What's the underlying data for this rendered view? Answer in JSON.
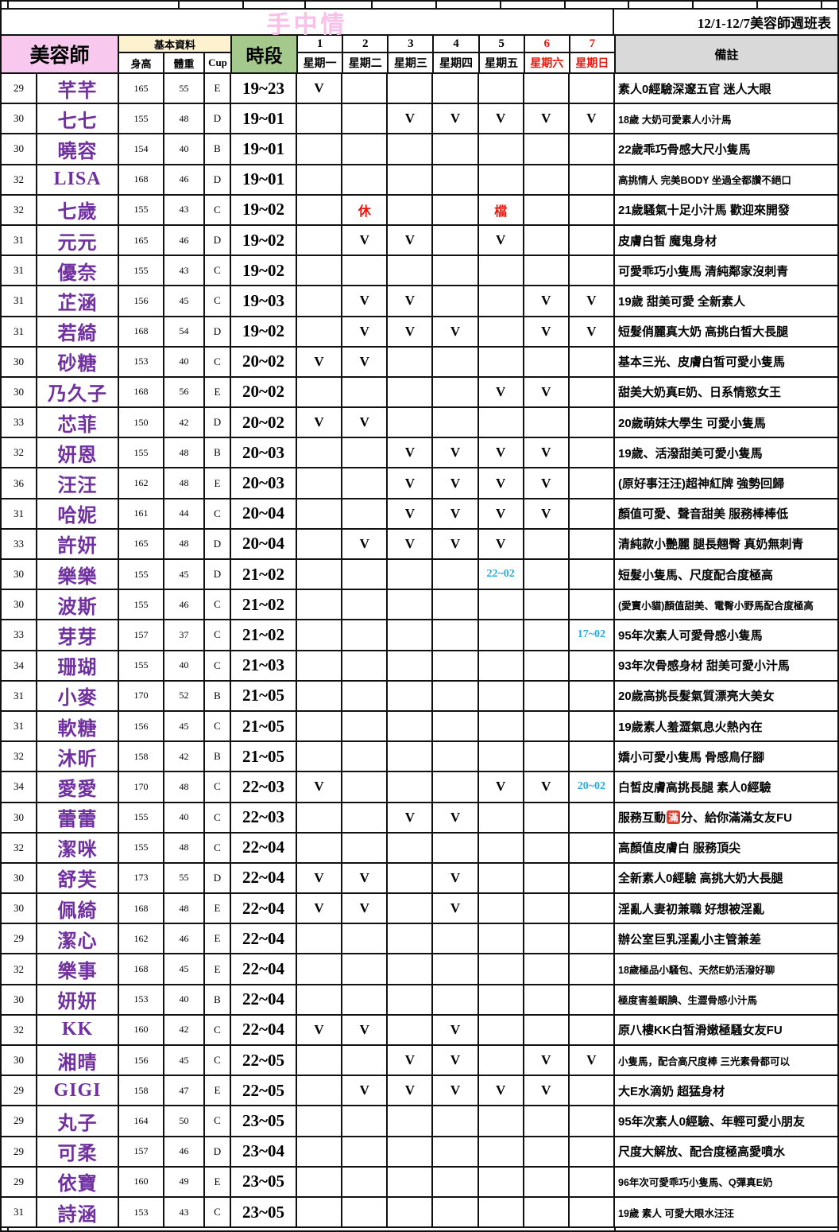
{
  "title": "手中情",
  "subtitle": "12/1-12/7美容師週班表",
  "header": {
    "beautician": "美容師",
    "basic_info": "基本資料",
    "height": "身高",
    "weight": "體重",
    "cup": "Cup",
    "time_slot": "時段",
    "remark": "備註",
    "days": [
      {
        "num": "1",
        "label": "星期一",
        "red": false
      },
      {
        "num": "2",
        "label": "星期二",
        "red": false
      },
      {
        "num": "3",
        "label": "星期三",
        "red": false
      },
      {
        "num": "4",
        "label": "星期四",
        "red": false
      },
      {
        "num": "5",
        "label": "星期五",
        "red": false
      },
      {
        "num": "6",
        "label": "星期六",
        "red": true
      },
      {
        "num": "7",
        "label": "星期日",
        "red": true
      }
    ]
  },
  "colors": {
    "name_purple": "#7030a0",
    "header_pink": "#f8c8ef",
    "header_cream": "#fcf2cf",
    "header_green": "#a5c98c",
    "header_gray": "#d9d9d9",
    "weekend_red": "#ee1509",
    "special_blue": "#29a9e1",
    "title_pink": "#f9c0ea"
  },
  "special": {
    "man_badge": "滿"
  },
  "rows": [
    {
      "age": "29",
      "name": "芊芊",
      "h": "165",
      "w": "55",
      "cup": "E",
      "time": "19~23",
      "days": [
        "V",
        "",
        "",
        "",
        "",
        "",
        ""
      ],
      "remark": "素人0經驗深邃五官 迷人大眼"
    },
    {
      "age": "30",
      "name": "七七",
      "h": "155",
      "w": "48",
      "cup": "D",
      "time": "19~01",
      "days": [
        "",
        "",
        "V",
        "V",
        "V",
        "V",
        "V"
      ],
      "remark": "18歲 大奶可愛素人小汁馬",
      "sm": 1
    },
    {
      "age": "30",
      "name": "曉容",
      "h": "154",
      "w": "40",
      "cup": "B",
      "time": "19~01",
      "days": [
        "",
        "",
        "",
        "",
        "",
        "",
        ""
      ],
      "remark": "22歲乖巧骨感大尺小隻馬"
    },
    {
      "age": "32",
      "name": "LISA",
      "h": "168",
      "w": "46",
      "cup": "D",
      "time": "19~01",
      "days": [
        "",
        "",
        "",
        "",
        "",
        "",
        ""
      ],
      "remark": "高挑情人 完美BODY 坐過全都讚不絕口",
      "sm": 1
    },
    {
      "age": "32",
      "name": "七歲",
      "h": "155",
      "w": "43",
      "cup": "C",
      "time": "19~02",
      "days": [
        "",
        "休",
        "",
        "",
        "檔",
        "",
        ""
      ],
      "remark": "21歲騷氣十足小汁馬 歡迎來開發"
    },
    {
      "age": "31",
      "name": "元元",
      "h": "165",
      "w": "46",
      "cup": "D",
      "time": "19~02",
      "days": [
        "",
        "V",
        "V",
        "",
        "V",
        "",
        ""
      ],
      "remark": "皮膚白皙 魔鬼身材"
    },
    {
      "age": "31",
      "name": "優奈",
      "h": "155",
      "w": "43",
      "cup": "C",
      "time": "19~02",
      "days": [
        "",
        "",
        "",
        "",
        "",
        "",
        ""
      ],
      "remark": "可愛乖巧小隻馬 清純鄰家沒刺青"
    },
    {
      "age": "31",
      "name": "芷涵",
      "h": "156",
      "w": "45",
      "cup": "C",
      "time": "19~03",
      "days": [
        "",
        "V",
        "V",
        "",
        "",
        "V",
        "V"
      ],
      "remark": "19歲 甜美可愛 全新素人"
    },
    {
      "age": "31",
      "name": "若綺",
      "h": "168",
      "w": "54",
      "cup": "D",
      "time": "19~02",
      "days": [
        "",
        "V",
        "V",
        "V",
        "",
        "V",
        "V"
      ],
      "remark": "短髮俏麗真大奶 高挑白皙大長腿"
    },
    {
      "age": "30",
      "name": "砂糖",
      "h": "153",
      "w": "40",
      "cup": "C",
      "time": "20~02",
      "days": [
        "V",
        "V",
        "",
        "",
        "",
        "",
        ""
      ],
      "remark": "基本三光、皮膚白皙可愛小隻馬"
    },
    {
      "age": "30",
      "name": "乃久子",
      "h": "168",
      "w": "56",
      "cup": "E",
      "time": "20~02",
      "days": [
        "",
        "",
        "",
        "",
        "V",
        "V",
        ""
      ],
      "remark": "甜美大奶真E奶、日系情慾女王"
    },
    {
      "age": "33",
      "name": "芯菲",
      "h": "150",
      "w": "42",
      "cup": "D",
      "time": "20~02",
      "days": [
        "V",
        "V",
        "",
        "",
        "",
        "",
        ""
      ],
      "remark": "20歲萌妹大學生 可愛小隻馬"
    },
    {
      "age": "32",
      "name": "妍恩",
      "h": "155",
      "w": "48",
      "cup": "B",
      "time": "20~03",
      "days": [
        "",
        "",
        "V",
        "V",
        "V",
        "V",
        ""
      ],
      "remark": "19歲、活潑甜美可愛小隻馬"
    },
    {
      "age": "36",
      "name": "汪汪",
      "h": "162",
      "w": "48",
      "cup": "E",
      "time": "20~03",
      "days": [
        "",
        "",
        "V",
        "V",
        "V",
        "V",
        ""
      ],
      "remark": "(原好事汪汪)超神紅牌 強勢回歸"
    },
    {
      "age": "31",
      "name": "哈妮",
      "h": "161",
      "w": "44",
      "cup": "C",
      "time": "20~04",
      "days": [
        "",
        "",
        "V",
        "V",
        "V",
        "V",
        ""
      ],
      "remark": "顏值可愛、聲音甜美 服務棒棒低"
    },
    {
      "age": "33",
      "name": "許妍",
      "h": "165",
      "w": "48",
      "cup": "D",
      "time": "20~04",
      "days": [
        "",
        "V",
        "V",
        "V",
        "V",
        "",
        ""
      ],
      "remark": "清純款小艷麗 腿長翹臀 真奶無刺青"
    },
    {
      "age": "30",
      "name": "樂樂",
      "h": "155",
      "w": "45",
      "cup": "D",
      "time": "21~02",
      "days": [
        "",
        "",
        "",
        "",
        "22~02",
        "",
        ""
      ],
      "remark": "短髮小隻馬、尺度配合度極高"
    },
    {
      "age": "30",
      "name": "波斯",
      "h": "155",
      "w": "46",
      "cup": "C",
      "time": "21~02",
      "days": [
        "",
        "",
        "",
        "",
        "",
        "",
        ""
      ],
      "remark": "(愛寶小貓)顏值甜美、電臀小野馬配合度極高",
      "sm": 1
    },
    {
      "age": "33",
      "name": "芽芽",
      "h": "157",
      "w": "37",
      "cup": "C",
      "time": "21~02",
      "days": [
        "",
        "",
        "",
        "",
        "",
        "",
        "17~02"
      ],
      "remark": "95年次素人可愛骨感小隻馬"
    },
    {
      "age": "34",
      "name": "珊瑚",
      "h": "155",
      "w": "40",
      "cup": "C",
      "time": "21~03",
      "days": [
        "",
        "",
        "",
        "",
        "",
        "",
        ""
      ],
      "remark": "93年次骨感身材 甜美可愛小汁馬"
    },
    {
      "age": "31",
      "name": "小麥",
      "h": "170",
      "w": "52",
      "cup": "B",
      "time": "21~05",
      "days": [
        "",
        "",
        "",
        "",
        "",
        "",
        ""
      ],
      "remark": "20歲高挑長髮氣質漂亮大美女"
    },
    {
      "age": "31",
      "name": "軟糖",
      "h": "156",
      "w": "45",
      "cup": "C",
      "time": "21~05",
      "days": [
        "",
        "",
        "",
        "",
        "",
        "",
        ""
      ],
      "remark": "19歲素人羞澀氣息火熱內在"
    },
    {
      "age": "32",
      "name": "沐昕",
      "h": "158",
      "w": "42",
      "cup": "B",
      "time": "21~05",
      "days": [
        "",
        "",
        "",
        "",
        "",
        "",
        ""
      ],
      "remark": "嬌小可愛小隻馬 骨感鳥仔腳"
    },
    {
      "age": "34",
      "name": "愛愛",
      "h": "170",
      "w": "48",
      "cup": "C",
      "time": "22~03",
      "days": [
        "V",
        "",
        "",
        "",
        "V",
        "V",
        "20~02"
      ],
      "remark": "白皙皮膚高挑長腿 素人0經驗"
    },
    {
      "age": "30",
      "name": "蕾蕾",
      "h": "155",
      "w": "40",
      "cup": "C",
      "time": "22~03",
      "days": [
        "",
        "",
        "V",
        "V",
        "",
        "",
        ""
      ],
      "remark": "服務互動🈵分、給你滿滿女友FU"
    },
    {
      "age": "32",
      "name": "潔咪",
      "h": "155",
      "w": "48",
      "cup": "C",
      "time": "22~04",
      "days": [
        "",
        "",
        "",
        "",
        "",
        "",
        ""
      ],
      "remark": "高顏值皮膚白 服務頂尖"
    },
    {
      "age": "30",
      "name": "舒芙",
      "h": "173",
      "w": "55",
      "cup": "D",
      "time": "22~04",
      "days": [
        "V",
        "V",
        "",
        "V",
        "",
        "",
        ""
      ],
      "remark": "全新素人0經驗 高挑大奶大長腿"
    },
    {
      "age": "30",
      "name": "佩綺",
      "h": "168",
      "w": "48",
      "cup": "E",
      "time": "22~04",
      "days": [
        "V",
        "V",
        "",
        "V",
        "",
        "",
        ""
      ],
      "remark": "淫亂人妻初兼職 好想被淫亂"
    },
    {
      "age": "29",
      "name": "潔心",
      "h": "162",
      "w": "46",
      "cup": "E",
      "time": "22~04",
      "days": [
        "",
        "",
        "",
        "",
        "",
        "",
        ""
      ],
      "remark": "辦公室巨乳淫亂小主管兼差"
    },
    {
      "age": "32",
      "name": "樂事",
      "h": "168",
      "w": "45",
      "cup": "E",
      "time": "22~04",
      "days": [
        "",
        "",
        "",
        "",
        "",
        "",
        ""
      ],
      "remark": "18歲極品小騷包、天然E奶活潑好聊",
      "sm": 1
    },
    {
      "age": "30",
      "name": "妍妍",
      "h": "153",
      "w": "40",
      "cup": "B",
      "time": "22~04",
      "days": [
        "",
        "",
        "",
        "",
        "",
        "",
        ""
      ],
      "remark": "極度害羞靦腆、生澀骨感小汁馬",
      "sm": 1
    },
    {
      "age": "32",
      "name": "KK",
      "h": "160",
      "w": "42",
      "cup": "C",
      "time": "22~04",
      "days": [
        "V",
        "V",
        "",
        "V",
        "",
        "",
        ""
      ],
      "remark": "原八樓KK白皙滑嫩極騷女友FU"
    },
    {
      "age": "30",
      "name": "湘晴",
      "h": "156",
      "w": "45",
      "cup": "C",
      "time": "22~05",
      "days": [
        "",
        "",
        "V",
        "V",
        "",
        "V",
        "V"
      ],
      "remark": "小隻馬，配合高尺度棒 三光素骨都可以",
      "sm": 1
    },
    {
      "age": "29",
      "name": "GIGI",
      "h": "158",
      "w": "47",
      "cup": "E",
      "time": "22~05",
      "days": [
        "",
        "V",
        "V",
        "V",
        "V",
        "V",
        ""
      ],
      "remark": "大E水滴奶 超猛身材"
    },
    {
      "age": "29",
      "name": "丸子",
      "h": "164",
      "w": "50",
      "cup": "C",
      "time": "23~05",
      "days": [
        "",
        "",
        "",
        "",
        "",
        "",
        ""
      ],
      "remark": "95年次素人0經驗、年輕可愛小朋友"
    },
    {
      "age": "29",
      "name": "可柔",
      "h": "157",
      "w": "46",
      "cup": "D",
      "time": "23~04",
      "days": [
        "",
        "",
        "",
        "",
        "",
        "",
        ""
      ],
      "remark": "尺度大解放、配合度極高愛噴水"
    },
    {
      "age": "29",
      "name": "依寶",
      "h": "160",
      "w": "49",
      "cup": "E",
      "time": "23~05",
      "days": [
        "",
        "",
        "",
        "",
        "",
        "",
        ""
      ],
      "remark": "96年次可愛乖巧小隻馬、Q彈真E奶",
      "sm": 1
    },
    {
      "age": "31",
      "name": "詩涵",
      "h": "153",
      "w": "43",
      "cup": "C",
      "time": "23~05",
      "days": [
        "",
        "",
        "",
        "",
        "",
        "",
        ""
      ],
      "remark": "19歲 素人 可愛大眼水汪汪",
      "sm": 1
    }
  ]
}
